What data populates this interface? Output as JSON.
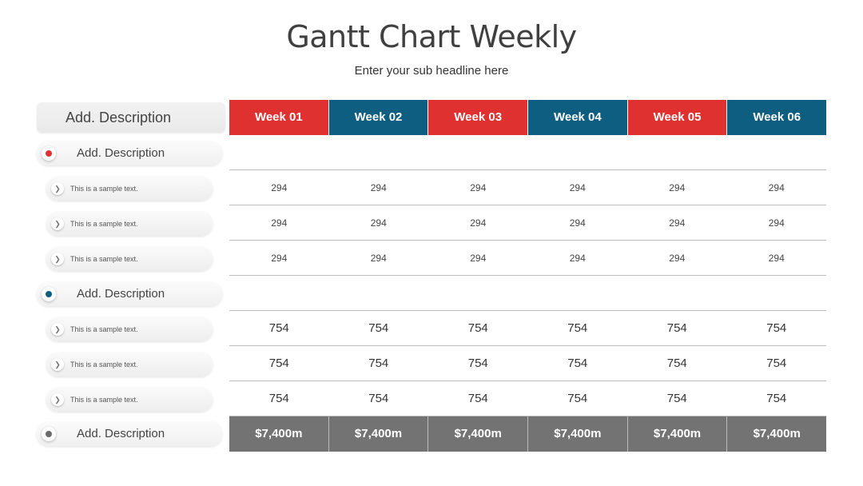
{
  "title": "Gantt Chart Weekly",
  "subtitle": "Enter your sub headline here",
  "left_header": "Add. Description",
  "colors": {
    "red": "#e03131",
    "blue": "#0e5e82",
    "total_bg": "#737373",
    "gray_dot": "#6b6b6b"
  },
  "weeks": [
    {
      "label": "Week 01",
      "color": "#e03131"
    },
    {
      "label": "Week 02",
      "color": "#0e5e82"
    },
    {
      "label": "Week 03",
      "color": "#e03131"
    },
    {
      "label": "Week 04",
      "color": "#0e5e82"
    },
    {
      "label": "Week 05",
      "color": "#e03131"
    },
    {
      "label": "Week 06",
      "color": "#0e5e82"
    }
  ],
  "groups": [
    {
      "label": "Add. Description",
      "dot_color": "#e03131",
      "items": [
        "This is a sample text.",
        "This is a sample text.",
        "This is a sample text."
      ],
      "rows": [
        [
          "294",
          "294",
          "294",
          "294",
          "294",
          "294"
        ],
        [
          "294",
          "294",
          "294",
          "294",
          "294",
          "294"
        ],
        [
          "294",
          "294",
          "294",
          "294",
          "294",
          "294"
        ]
      ]
    },
    {
      "label": "Add. Description",
      "dot_color": "#0e5e82",
      "items": [
        "This is a sample text.",
        "This is a sample text.",
        "This is a sample text."
      ],
      "rows": [
        [
          "754",
          "754",
          "754",
          "754",
          "754",
          "754"
        ],
        [
          "754",
          "754",
          "754",
          "754",
          "754",
          "754"
        ],
        [
          "754",
          "754",
          "754",
          "754",
          "754",
          "754"
        ]
      ]
    },
    {
      "label": "Add. Description",
      "dot_color": "#6b6b6b",
      "totals": [
        "$7,400m",
        "$7,400m",
        "$7,400m",
        "$7,400m",
        "$7,400m",
        "$7,400m"
      ]
    }
  ],
  "chevron_icon": "chevron-right-icon"
}
